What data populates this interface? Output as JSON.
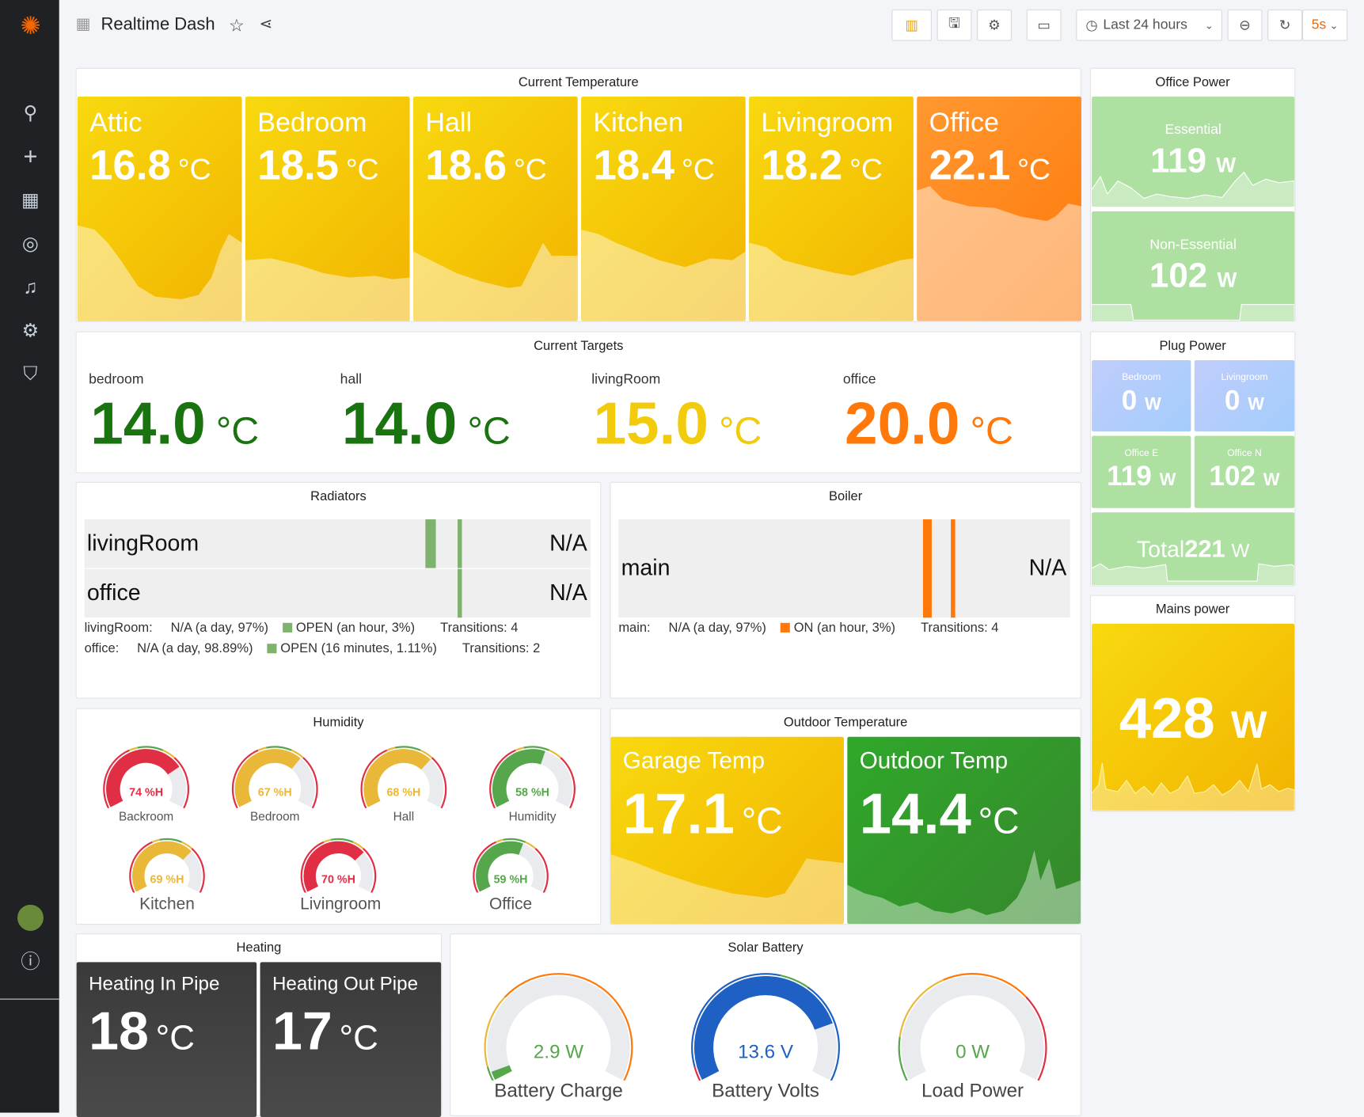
{
  "header": {
    "title": "Realtime Dash",
    "time_range": "Last 24 hours",
    "refresh": "5s"
  },
  "current_temperature": {
    "title": "Current Temperature",
    "tiles": [
      {
        "name": "Attic",
        "value": "16.8",
        "unit": "°C"
      },
      {
        "name": "Bedroom",
        "value": "18.5",
        "unit": "°C"
      },
      {
        "name": "Hall",
        "value": "18.6",
        "unit": "°C"
      },
      {
        "name": "Kitchen",
        "value": "18.4",
        "unit": "°C"
      },
      {
        "name": "Livingroom",
        "value": "18.2",
        "unit": "°C"
      },
      {
        "name": "Office",
        "value": "22.1",
        "unit": "°C"
      }
    ]
  },
  "office_power": {
    "title": "Office Power",
    "tiles": [
      {
        "name": "Essential",
        "value": "119",
        "unit": "W"
      },
      {
        "name": "Non-Essential",
        "value": "102",
        "unit": "W"
      }
    ]
  },
  "current_targets": {
    "title": "Current Targets",
    "items": [
      {
        "name": "bedroom",
        "value": "14.0",
        "unit": "°C",
        "color": "#19730e"
      },
      {
        "name": "hall",
        "value": "14.0",
        "unit": "°C",
        "color": "#19730e"
      },
      {
        "name": "livingRoom",
        "value": "15.0",
        "unit": "°C",
        "color": "#f2cc0c"
      },
      {
        "name": "office",
        "value": "20.0",
        "unit": "°C",
        "color": "#ff780a"
      }
    ]
  },
  "plug_power": {
    "title": "Plug Power",
    "tiles": [
      {
        "name": "Bedroom",
        "value": "0",
        "unit": "W"
      },
      {
        "name": "Livingroom",
        "value": "0",
        "unit": "W"
      },
      {
        "name": "Office E",
        "value": "119",
        "unit": "W"
      },
      {
        "name": "Office N",
        "value": "102",
        "unit": "W"
      },
      {
        "name": "Total",
        "value": "221",
        "unit": "W"
      }
    ]
  },
  "mains_power": {
    "title": "Mains power",
    "value": "428",
    "unit": "W"
  },
  "radiators": {
    "title": "Radiators",
    "rows": [
      {
        "name": "livingRoom",
        "value": "N/A"
      },
      {
        "name": "office",
        "value": "N/A"
      }
    ],
    "legend": [
      {
        "name": "livingRoom:",
        "na": "N/A (a day, 97%)",
        "open": "OPEN (an hour, 3%)",
        "transitions": "Transitions: 4"
      },
      {
        "name": "office:",
        "na": "N/A (a day, 98.89%)",
        "open": "OPEN (16 minutes, 1.11%)",
        "transitions": "Transitions: 2"
      }
    ]
  },
  "boiler": {
    "title": "Boiler",
    "rows": [
      {
        "name": "main",
        "value": "N/A"
      }
    ],
    "legend": [
      {
        "name": "main:",
        "na": "N/A (a day, 97%)",
        "on": "ON (an hour, 3%)",
        "transitions": "Transitions: 4"
      }
    ]
  },
  "humidity": {
    "title": "Humidity",
    "gauges": [
      {
        "name": "Backroom",
        "value": 74,
        "label": "74 %H",
        "color": "#e02f44"
      },
      {
        "name": "Bedroom",
        "value": 67,
        "label": "67 %H",
        "color": "#eab839"
      },
      {
        "name": "Hall",
        "value": 68,
        "label": "68 %H",
        "color": "#eab839"
      },
      {
        "name": "Humidity",
        "value": 58,
        "label": "58 %H",
        "color": "#56a64b"
      },
      {
        "name": "Kitchen",
        "value": 69,
        "label": "69 %H",
        "color": "#eab839"
      },
      {
        "name": "Livingroom",
        "value": 70,
        "label": "70 %H",
        "color": "#e02f44"
      },
      {
        "name": "Office",
        "value": 59,
        "label": "59 %H",
        "color": "#56a64b"
      }
    ]
  },
  "outdoor_temperature": {
    "title": "Outdoor Temperature",
    "tiles": [
      {
        "name": "Garage Temp",
        "value": "17.1",
        "unit": "°C"
      },
      {
        "name": "Outdoor Temp",
        "value": "14.4",
        "unit": "°C"
      }
    ]
  },
  "heating": {
    "title": "Heating",
    "tiles": [
      {
        "name": "Heating In Pipe",
        "value": "18",
        "unit": "°C"
      },
      {
        "name": "Heating Out Pipe",
        "value": "17",
        "unit": "°C"
      }
    ]
  },
  "solar_battery": {
    "title": "Solar Battery",
    "gauges": [
      {
        "name": "Battery Charge",
        "label": "2.9 W",
        "fraction": 0.03,
        "color": "#56a64b"
      },
      {
        "name": "Battery Volts",
        "label": "13.6 V",
        "fraction": 0.8,
        "color": "#1f60c4"
      },
      {
        "name": "Load Power",
        "label": "0 W",
        "fraction": 0,
        "color": "#56a64b"
      }
    ]
  }
}
